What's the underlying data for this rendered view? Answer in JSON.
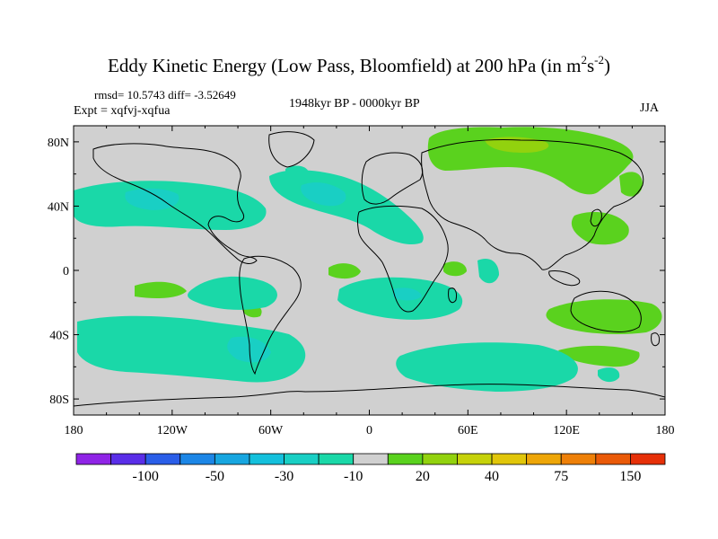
{
  "title": {
    "main": "Eddy Kinetic Energy (Low Pass, Bloomfield) at 200 hPa (in m",
    "sup1": "2",
    "mid": "s",
    "sup2": "-2",
    "end": ")"
  },
  "stats": "rmsd= 10.5743 diff= -3.52649",
  "experiment": "Expt = xqfvj-xqfua",
  "period": "1948kyr BP - 0000kyr BP",
  "season": "JJA",
  "colors": {
    "land_gray": "#d0d0d0",
    "coast": "#000000"
  },
  "chart_data": {
    "type": "heatmap",
    "description_units": "m2 s-2",
    "x_axis": {
      "range": [
        -180,
        180
      ],
      "ticks": [
        -180,
        -120,
        -60,
        0,
        60,
        120,
        180
      ],
      "tick_labels": [
        "180",
        "120W",
        "60W",
        "0",
        "60E",
        "120E",
        "180"
      ]
    },
    "y_axis": {
      "range": [
        -90,
        90
      ],
      "ticks": [
        80,
        40,
        0,
        -40,
        -80
      ],
      "tick_labels": [
        "80N",
        "40N",
        "0",
        "40S",
        "80S"
      ]
    },
    "colorbar": {
      "colors": [
        "#8f24e6",
        "#5a2ee8",
        "#2a5ee8",
        "#1c86e6",
        "#17a6e0",
        "#14c0dc",
        "#19cfc4",
        "#1ad8a8",
        "#d0d0d0",
        "#5ad21e",
        "#92d20e",
        "#c6d20a",
        "#e1c60a",
        "#eea608",
        "#ee8008",
        "#ea5a08",
        "#e63008"
      ],
      "labels": [
        {
          "after_box": 2,
          "text": "-100"
        },
        {
          "after_box": 4,
          "text": "-50"
        },
        {
          "after_box": 6,
          "text": "-30"
        },
        {
          "after_box": 8,
          "text": "-10"
        },
        {
          "after_box": 10,
          "text": "20"
        },
        {
          "after_box": 12,
          "text": "40"
        },
        {
          "after_box": 14,
          "text": "75"
        },
        {
          "after_box": 16,
          "text": "150"
        }
      ]
    },
    "regions": [
      {
        "name": "n-atlantic-neg",
        "class": "-30 to -10",
        "lon": [
          -85,
          10
        ],
        "lat": [
          28,
          58
        ],
        "value": -25
      },
      {
        "name": "n-pacific-neg",
        "class": "-30 to -10",
        "lon": [
          -180,
          -120
        ],
        "lat": [
          30,
          50
        ],
        "value": -20
      },
      {
        "name": "eurasia-pos",
        "class": "10 to 20",
        "lon": [
          40,
          155
        ],
        "lat": [
          55,
          82
        ],
        "value": 15
      },
      {
        "name": "s-atlantic-neg",
        "class": "-30 to -10",
        "lon": [
          -30,
          50
        ],
        "lat": [
          -25,
          -5
        ],
        "value": -18
      },
      {
        "name": "s-pacific-neg",
        "class": "-30 to -10",
        "lon": [
          -110,
          -60
        ],
        "lat": [
          -30,
          -5
        ],
        "value": -20
      },
      {
        "name": "southern-ocean-neg",
        "class": "-30 to -10",
        "lon": [
          -140,
          -20
        ],
        "lat": [
          -60,
          -35
        ],
        "value": -22
      },
      {
        "name": "indian-ocean-pos",
        "class": "10 to 20",
        "lon": [
          115,
          180
        ],
        "lat": [
          -45,
          -28
        ],
        "value": 14
      },
      {
        "name": "s-indian-neg",
        "class": "-30 to -10",
        "lon": [
          30,
          150
        ],
        "lat": [
          -68,
          -50
        ],
        "value": -18
      }
    ]
  }
}
